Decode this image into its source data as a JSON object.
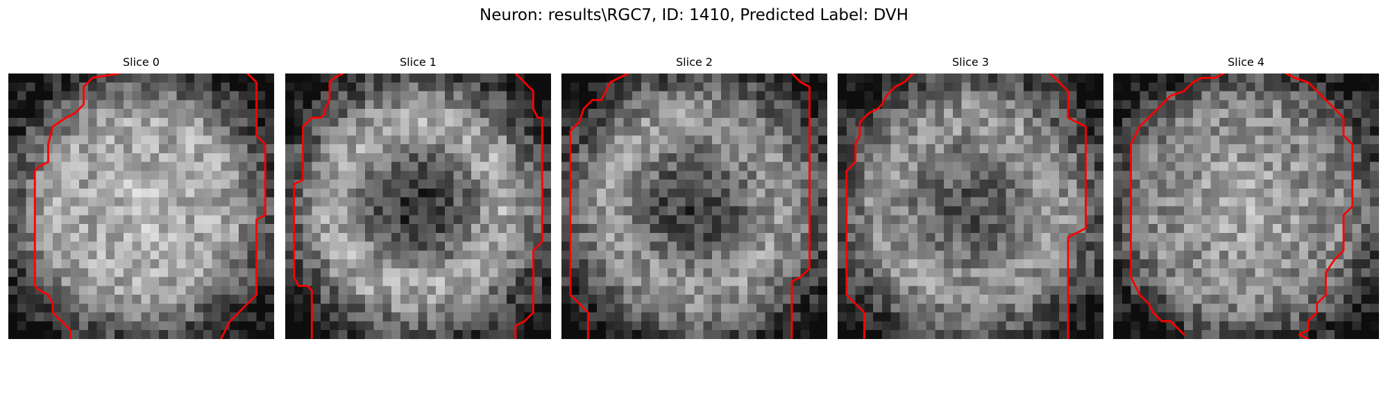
{
  "figure": {
    "title": "Neuron: results\\RGC7, ID: 1410, Predicted Label: DVH"
  },
  "grid_size": 30,
  "colors": {
    "contour": "#ff0000",
    "background": "#ffffff"
  },
  "slices": [
    {
      "title": "Slice 0",
      "center_dark": 0.0,
      "center_bright": 0.22,
      "ring_bright": 0.1,
      "seed": 11,
      "left_contour": [
        [
          12.5,
          0
        ],
        [
          9.5,
          0.5
        ],
        [
          8.5,
          1.5
        ],
        [
          8.5,
          3.5
        ],
        [
          7.5,
          4.5
        ],
        [
          6.5,
          5
        ],
        [
          5,
          6
        ],
        [
          4.5,
          8
        ],
        [
          4.5,
          10
        ],
        [
          3.5,
          10.5
        ],
        [
          3,
          11
        ],
        [
          3,
          24
        ],
        [
          3.5,
          24.5
        ],
        [
          4.5,
          25
        ],
        [
          5,
          26
        ],
        [
          5,
          27
        ],
        [
          6,
          28
        ],
        [
          7,
          29
        ],
        [
          7,
          30
        ]
      ],
      "right_contour": [
        [
          27,
          0
        ],
        [
          28,
          1
        ],
        [
          28,
          2
        ],
        [
          28,
          7
        ],
        [
          29,
          8
        ],
        [
          29,
          16
        ],
        [
          28,
          16.5
        ],
        [
          28,
          24
        ],
        [
          28,
          25
        ],
        [
          27,
          26
        ],
        [
          26,
          27
        ],
        [
          25,
          28
        ],
        [
          24.5,
          29
        ],
        [
          24,
          30
        ]
      ]
    },
    {
      "title": "Slice 1",
      "center_dark": 0.32,
      "center_bright": 0.0,
      "ring_bright": 0.18,
      "seed": 23,
      "left_contour": [
        [
          6.5,
          0
        ],
        [
          5.5,
          0.5
        ],
        [
          5,
          1
        ],
        [
          5,
          3
        ],
        [
          4.5,
          4
        ],
        [
          4.5,
          4.5
        ],
        [
          4,
          5
        ],
        [
          3,
          5
        ],
        [
          2.5,
          5.5
        ],
        [
          2,
          6
        ],
        [
          2,
          12
        ],
        [
          1,
          12.5
        ],
        [
          1,
          23
        ],
        [
          1.5,
          24
        ],
        [
          2.5,
          24
        ],
        [
          3,
          24.5
        ],
        [
          3,
          30
        ]
      ],
      "right_contour": [
        [
          26,
          0
        ],
        [
          27,
          1
        ],
        [
          28,
          2
        ],
        [
          28,
          3
        ],
        [
          28,
          4
        ],
        [
          28.5,
          5
        ],
        [
          29,
          5
        ],
        [
          29,
          19
        ],
        [
          28.5,
          19.5
        ],
        [
          28,
          20
        ],
        [
          28,
          27
        ],
        [
          27,
          28
        ],
        [
          26,
          28.5
        ],
        [
          26,
          30
        ]
      ]
    },
    {
      "title": "Slice 2",
      "center_dark": 0.28,
      "center_bright": 0.0,
      "ring_bright": 0.1,
      "seed": 37,
      "left_contour": [
        [
          7.5,
          0
        ],
        [
          6.5,
          0.5
        ],
        [
          5.5,
          1
        ],
        [
          5,
          2
        ],
        [
          4.5,
          3
        ],
        [
          3.5,
          3
        ],
        [
          2.5,
          4
        ],
        [
          2,
          5.5
        ],
        [
          1,
          6.5
        ],
        [
          1,
          25
        ],
        [
          2,
          26
        ],
        [
          3,
          27
        ],
        [
          3,
          30
        ]
      ],
      "right_contour": [
        [
          26,
          0
        ],
        [
          27,
          1
        ],
        [
          28,
          1.5
        ],
        [
          28,
          22
        ],
        [
          27.5,
          22.5
        ],
        [
          27,
          23
        ],
        [
          26,
          23.5
        ],
        [
          26,
          30
        ]
      ]
    },
    {
      "title": "Slice 3",
      "center_dark": 0.2,
      "center_bright": 0.0,
      "ring_bright": 0.08,
      "seed": 51,
      "left_contour": [
        [
          8.5,
          0
        ],
        [
          7.5,
          1
        ],
        [
          6.5,
          1.5
        ],
        [
          5.5,
          2.5
        ],
        [
          5,
          3.5
        ],
        [
          4.5,
          4
        ],
        [
          3.5,
          4.5
        ],
        [
          2.5,
          5.5
        ],
        [
          2.5,
          7
        ],
        [
          2,
          8
        ],
        [
          2,
          10
        ],
        [
          1,
          11
        ],
        [
          1,
          25
        ],
        [
          2,
          26
        ],
        [
          3,
          27
        ],
        [
          3,
          30
        ]
      ],
      "right_contour": [
        [
          24,
          0
        ],
        [
          25,
          1
        ],
        [
          26,
          2
        ],
        [
          26,
          4
        ],
        [
          26,
          5
        ],
        [
          27,
          5.5
        ],
        [
          28,
          6
        ],
        [
          28,
          17.5
        ],
        [
          27,
          18
        ],
        [
          26,
          18.5
        ],
        [
          26,
          30
        ]
      ]
    },
    {
      "title": "Slice 4",
      "center_dark": 0.0,
      "center_bright": 0.16,
      "ring_bright": 0.0,
      "seed": 67,
      "left_contour": [
        [
          12.5,
          0
        ],
        [
          11.5,
          0.5
        ],
        [
          10,
          0.5
        ],
        [
          9,
          1
        ],
        [
          8,
          2
        ],
        [
          6.5,
          2.5
        ],
        [
          6,
          3
        ],
        [
          5,
          4
        ],
        [
          4,
          5
        ],
        [
          3,
          6
        ],
        [
          2,
          8
        ],
        [
          2,
          23
        ],
        [
          2.5,
          24
        ],
        [
          3,
          25
        ],
        [
          4,
          26
        ],
        [
          4.5,
          27
        ],
        [
          5.5,
          28
        ],
        [
          6.5,
          28
        ],
        [
          7.5,
          29
        ],
        [
          8,
          29.5
        ]
      ],
      "right_contour": [
        [
          19.5,
          0
        ],
        [
          20.5,
          0.5
        ],
        [
          22,
          1
        ],
        [
          23,
          2
        ],
        [
          24,
          3
        ],
        [
          25,
          4
        ],
        [
          26,
          5
        ],
        [
          26,
          7
        ],
        [
          27,
          8
        ],
        [
          27,
          15
        ],
        [
          26.5,
          15.5
        ],
        [
          26,
          16
        ],
        [
          26,
          20
        ],
        [
          25,
          21
        ],
        [
          24,
          22.5
        ],
        [
          24,
          25
        ],
        [
          23,
          26
        ],
        [
          23,
          27
        ],
        [
          22,
          28
        ],
        [
          22,
          29
        ],
        [
          21,
          29.5
        ],
        [
          22,
          30
        ]
      ]
    }
  ]
}
